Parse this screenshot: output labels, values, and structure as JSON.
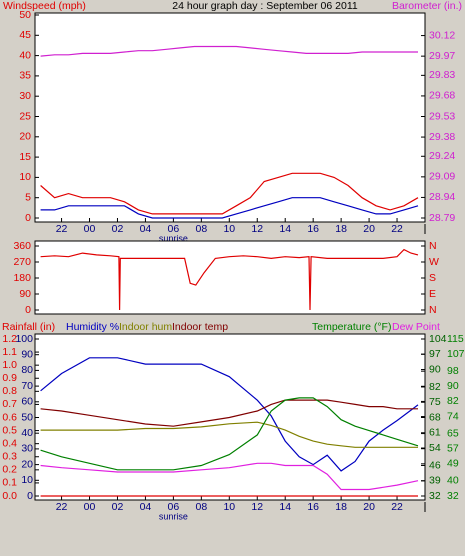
{
  "chart_data": [
    {
      "type": "line",
      "title": "24 hour graph day : September 06 2011",
      "ylabel": "Windspeed (mph)",
      "y2label": "Barometer (in.)",
      "ytick_color": "#e00000",
      "y2tick_color": "#d020d0",
      "x": [
        -3.5,
        -2.5,
        -1.5,
        -0.5,
        0.5,
        1.5,
        2.5,
        3.5,
        4.5,
        5.5,
        6.5,
        7.5,
        8.5,
        9.5,
        10.5,
        11.5,
        12.5,
        13.5,
        14.5,
        15.5,
        16.5,
        17.5,
        18.5,
        19.5,
        20.5,
        21.5,
        22.5,
        23.5
      ],
      "xlim": [
        -3.9,
        24
      ],
      "xticks": [
        {
          "value": -2,
          "label": "22"
        },
        {
          "value": 0,
          "label": "00"
        },
        {
          "value": 2,
          "label": "02"
        },
        {
          "value": 4,
          "label": "04"
        },
        {
          "value": 6,
          "label": "06"
        },
        {
          "value": 8,
          "label": "08"
        },
        10,
        12,
        14,
        16,
        18,
        20,
        22
      ],
      "annotations": [
        {
          "text": "sunrise",
          "x": 6
        }
      ],
      "ylim": [
        0,
        50
      ],
      "yticks": [
        0,
        5,
        10,
        15,
        20,
        25,
        30,
        35,
        40,
        45,
        50
      ],
      "y2lim": [
        28.79,
        30.27
      ],
      "y2ticks": [
        28.79,
        28.94,
        29.09,
        29.24,
        29.38,
        29.53,
        29.68,
        29.83,
        29.97,
        30.12
      ],
      "grid": false,
      "series": [
        {
          "color": "#e00000",
          "values": [
            8,
            5,
            6,
            5,
            5,
            5,
            4,
            2,
            1,
            1,
            1,
            1,
            1,
            1,
            3,
            5,
            9,
            10,
            11,
            11,
            11,
            10,
            8,
            5,
            3,
            2,
            3,
            5
          ]
        },
        {
          "color": "#0000c0",
          "values": [
            2,
            2,
            3,
            3,
            3,
            3,
            3,
            1,
            0,
            0,
            0,
            0,
            0,
            0,
            1,
            2,
            3,
            4,
            5,
            5,
            5,
            4,
            3,
            2,
            1,
            1,
            2,
            3
          ]
        },
        {
          "color": "#d020d0",
          "axis": "y2",
          "values": [
            29.97,
            29.98,
            29.98,
            29.99,
            29.99,
            29.99,
            30.0,
            30.01,
            30.01,
            30.02,
            30.03,
            30.04,
            30.04,
            30.04,
            30.04,
            30.03,
            30.02,
            30.01,
            30.0,
            29.99,
            29.99,
            29.99,
            29.99,
            30.0,
            30.0,
            30.0,
            30.0,
            30.0
          ]
        }
      ]
    },
    {
      "type": "line",
      "ytick_color": "#e00000",
      "y2tick_color": "#e00000",
      "x": [
        -3.5,
        -2.5,
        -1.5,
        -0.5,
        0.5,
        1.5,
        2.1,
        2.15,
        2.2,
        3,
        4,
        5,
        6,
        6.8,
        7.2,
        7.6,
        8.2,
        9,
        10,
        11,
        12,
        13,
        14,
        15,
        15.7,
        15.77,
        15.85,
        17,
        18,
        19,
        20,
        21,
        22,
        22.5,
        23,
        23.5
      ],
      "xlim": [
        -3.9,
        24
      ],
      "ylim": [
        0,
        360
      ],
      "yticks": [
        0,
        90,
        180,
        270,
        360
      ],
      "y2lim": [
        0,
        360
      ],
      "y2ticks": [
        {
          "value": 360,
          "label": "N"
        },
        {
          "value": 270,
          "label": "W"
        },
        {
          "value": 180,
          "label": "S"
        },
        {
          "value": 90,
          "label": "E"
        },
        {
          "value": 0,
          "label": "N"
        }
      ],
      "grid": false,
      "series": [
        {
          "color": "#e00000",
          "values": [
            300,
            305,
            300,
            320,
            310,
            305,
            300,
            0,
            290,
            290,
            290,
            290,
            290,
            290,
            150,
            140,
            210,
            290,
            300,
            305,
            300,
            290,
            300,
            295,
            300,
            0,
            300,
            290,
            290,
            290,
            290,
            290,
            300,
            340,
            320,
            310
          ]
        }
      ]
    },
    {
      "type": "line",
      "x": [
        -3.5,
        -2,
        0,
        2,
        4,
        6,
        8,
        10,
        12,
        13,
        14,
        15,
        16,
        17,
        18,
        19,
        20,
        21,
        22,
        23.5
      ],
      "xlim": [
        -3.9,
        24
      ],
      "xticks": [
        {
          "value": -2,
          "label": "22"
        },
        {
          "value": 0,
          "label": "00"
        },
        {
          "value": 2,
          "label": "02"
        },
        {
          "value": 4,
          "label": "04"
        },
        {
          "value": 6,
          "label": "06"
        },
        {
          "value": 8,
          "label": "08"
        },
        10,
        12,
        14,
        16,
        18,
        20,
        22
      ],
      "annotations": [
        {
          "text": "sunrise",
          "x": 6
        }
      ],
      "grid": false,
      "axes": [
        {
          "lim": [
            0,
            1.2
          ],
          "color": "#e00000",
          "ticks": [
            {
              "value": 0,
              "label": "0.0"
            },
            0.1,
            0.2,
            0.3,
            0.4,
            0.5,
            0.6,
            0.7,
            0.8,
            0.9,
            {
              "value": 1,
              "label": "1.0"
            },
            1.1,
            1.2
          ]
        },
        {
          "lim": [
            0,
            100
          ],
          "color": "#000080",
          "ticks": [
            0,
            10,
            20,
            30,
            40,
            50,
            60,
            70,
            80,
            90,
            100
          ]
        },
        {
          "lim": [
            32,
            104
          ],
          "color": "#006000",
          "ticks": [
            32,
            39,
            46,
            54,
            61,
            68,
            75,
            82,
            90,
            97,
            104
          ]
        },
        {
          "lim": [
            32,
            115
          ],
          "color": "#008000",
          "ticks": [
            32,
            40,
            49,
            57,
            65,
            74,
            82,
            90,
            98,
            107,
            115
          ]
        }
      ],
      "series": [
        {
          "name": "Rainfall (in)",
          "color": "#e00000",
          "axis": 0,
          "values": [
            0,
            0,
            0,
            0,
            0,
            0,
            0,
            0,
            0,
            0,
            0,
            0,
            0,
            0,
            0,
            0,
            0,
            0,
            0,
            0
          ]
        },
        {
          "name": "Humidity %",
          "color": "#0000c0",
          "axis": 1,
          "values": [
            67,
            78,
            88,
            88,
            84,
            84,
            84,
            76,
            61,
            51,
            35,
            25,
            20,
            26,
            16,
            22,
            35,
            42,
            48,
            58
          ]
        },
        {
          "name": "Indoor hum",
          "color": "#808000",
          "axis": 1,
          "values": [
            42,
            42,
            42,
            42,
            43,
            43,
            44,
            46,
            47,
            45,
            42,
            38,
            35,
            33,
            32,
            31,
            31,
            31,
            31,
            31
          ]
        },
        {
          "name": "Indoor temp",
          "color": "#800000",
          "axis": 2,
          "values": [
            72,
            71,
            69,
            67,
            65,
            64,
            66,
            68,
            71,
            74,
            76,
            76,
            76,
            76,
            75,
            74,
            73,
            73,
            72,
            72
          ]
        },
        {
          "name": "Temperature (°F)",
          "color": "#008000",
          "axis": 2,
          "values": [
            53,
            50,
            47,
            44,
            44,
            44,
            46,
            51,
            60,
            71,
            76,
            77,
            77,
            73,
            67,
            64,
            62,
            60,
            58,
            55
          ]
        },
        {
          "name": "Dew Point",
          "color": "#e020e0",
          "axis": 2,
          "values": [
            46,
            45,
            44,
            43,
            43,
            43,
            44,
            45,
            47,
            47,
            46,
            46,
            46,
            42,
            35,
            35,
            35,
            36,
            37,
            39
          ]
        }
      ]
    }
  ]
}
